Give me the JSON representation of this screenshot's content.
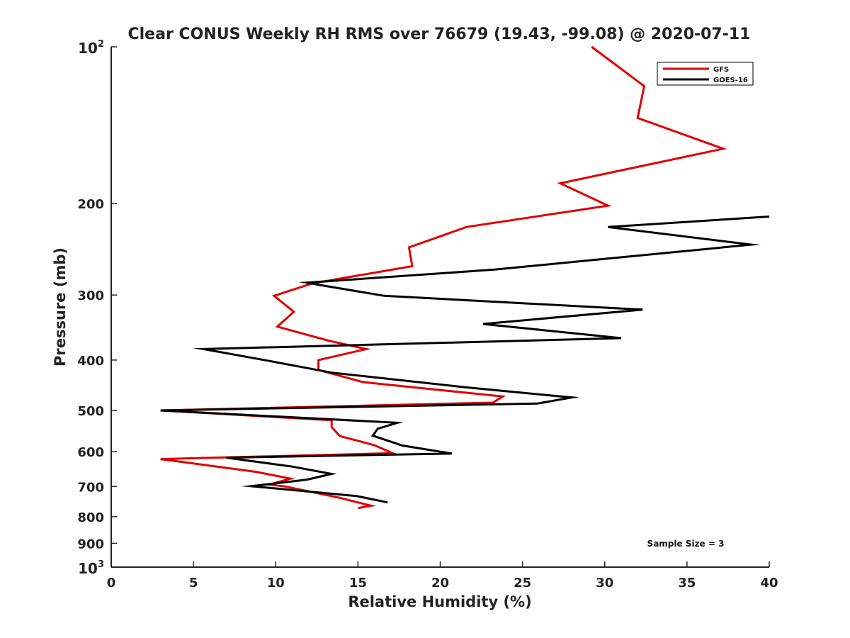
{
  "chart_data": {
    "type": "line",
    "title": "Clear CONUS Weekly RH RMS over 76679 (19.43, -99.08) @ 2020-07-11",
    "xlabel": "Relative Humidity (%)",
    "ylabel": "Pressure (mb)",
    "xlim": [
      0,
      40
    ],
    "ylim": [
      100,
      1000
    ],
    "yscale": "log",
    "y_reversed": true,
    "grid": false,
    "legend_position": "top-right",
    "x_ticks": [
      "0",
      "5",
      "10",
      "15",
      "20",
      "25",
      "30",
      "35",
      "40"
    ],
    "y_ticks": [
      {
        "value": 100,
        "base": "10",
        "exp": "2"
      },
      {
        "value": 200,
        "label": "200"
      },
      {
        "value": 300,
        "label": "300"
      },
      {
        "value": 400,
        "label": "400"
      },
      {
        "value": 500,
        "label": "500"
      },
      {
        "value": 600,
        "label": "600"
      },
      {
        "value": 700,
        "label": "700"
      },
      {
        "value": 800,
        "label": "800"
      },
      {
        "value": 900,
        "label": "900"
      },
      {
        "value": 1000,
        "base": "10",
        "exp": "3"
      }
    ],
    "annotation": "Sample Size = 3",
    "series": [
      {
        "name": "GFS",
        "color": "#e00000",
        "points": [
          [
            29.2,
            100
          ],
          [
            32.4,
            119
          ],
          [
            32.0,
            137
          ],
          [
            37.2,
            157
          ],
          [
            27.3,
            183
          ],
          [
            30.2,
            202
          ],
          [
            21.6,
            222
          ],
          [
            18.1,
            243
          ],
          [
            18.3,
            264
          ],
          [
            12.2,
            285
          ],
          [
            9.9,
            301
          ],
          [
            11.1,
            323
          ],
          [
            10.1,
            345
          ],
          [
            13.2,
            367
          ],
          [
            15.5,
            381
          ],
          [
            12.6,
            400
          ],
          [
            12.6,
            418
          ],
          [
            15.3,
            441
          ],
          [
            23.8,
            470
          ],
          [
            23.2,
            483
          ],
          [
            3.0,
            500
          ],
          [
            13.4,
            522
          ],
          [
            13.4,
            538
          ],
          [
            13.9,
            560
          ],
          [
            16.0,
            583
          ],
          [
            17.1,
            604
          ],
          [
            3.0,
            620
          ],
          [
            8.8,
            656
          ],
          [
            10.9,
            676
          ],
          [
            9.6,
            694
          ],
          [
            10.6,
            700
          ],
          [
            13.9,
            736
          ],
          [
            15.8,
            762
          ],
          [
            15.0,
            770
          ]
        ]
      },
      {
        "name": "GOES-16",
        "color": "#000000",
        "points": [
          [
            40.0,
            212
          ],
          [
            30.2,
            222
          ],
          [
            38.9,
            240
          ],
          [
            23.3,
            268
          ],
          [
            11.9,
            284
          ],
          [
            12.7,
            287
          ],
          [
            16.6,
            301
          ],
          [
            32.3,
            320
          ],
          [
            22.6,
            341
          ],
          [
            31.0,
            363
          ],
          [
            5.6,
            381
          ],
          [
            9.5,
            401
          ],
          [
            13.4,
            423
          ],
          [
            21.5,
            451
          ],
          [
            28.0,
            472
          ],
          [
            25.9,
            485
          ],
          [
            3.0,
            500
          ],
          [
            17.4,
            528
          ],
          [
            16.2,
            542
          ],
          [
            15.9,
            559
          ],
          [
            17.7,
            584
          ],
          [
            20.7,
            605
          ],
          [
            7.0,
            616
          ],
          [
            11.0,
            641
          ],
          [
            13.4,
            662
          ],
          [
            11.9,
            679
          ],
          [
            8.5,
            699
          ],
          [
            14.9,
            730
          ],
          [
            16.8,
            751
          ]
        ]
      }
    ]
  }
}
